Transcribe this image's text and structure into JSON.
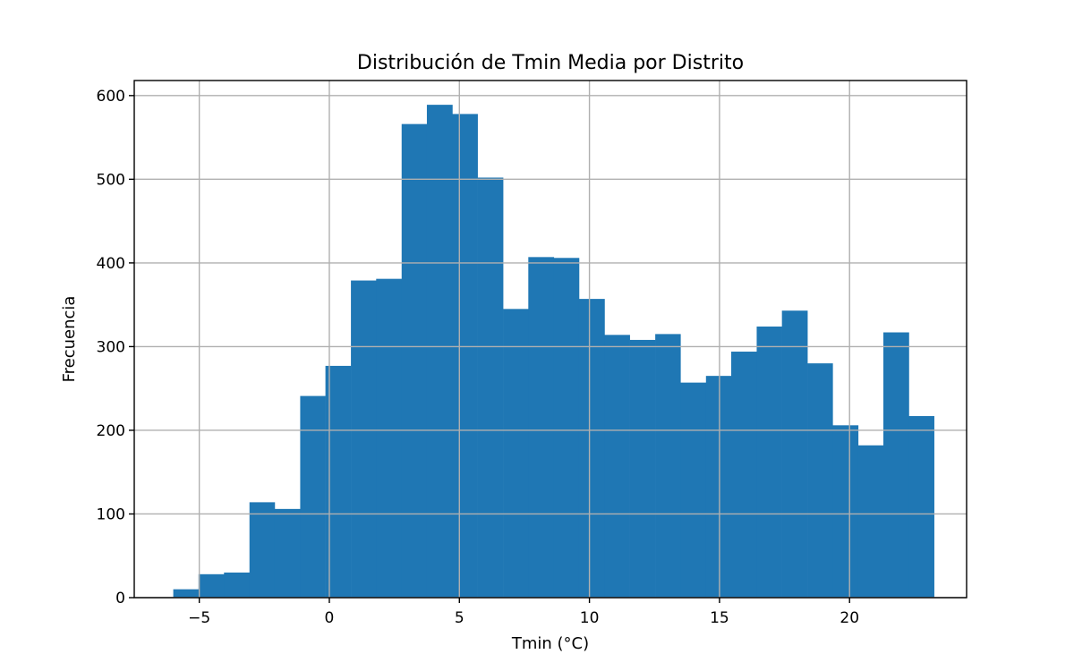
{
  "chart_data": {
    "type": "bar",
    "title": "Distribución de Tmin Media por Distrito",
    "xlabel": "Tmin (°C)",
    "ylabel": "Frecuencia",
    "xlim": [
      -7.5,
      24.5
    ],
    "ylim": [
      0,
      618
    ],
    "grid": true,
    "bar_color": "#1f77b4",
    "x_ticks": [
      -5,
      0,
      5,
      10,
      15,
      20
    ],
    "x_tick_labels": [
      "−5",
      "0",
      "5",
      "10",
      "15",
      "20"
    ],
    "y_ticks": [
      0,
      100,
      200,
      300,
      400,
      500,
      600
    ],
    "y_tick_labels": [
      "0",
      "100",
      "200",
      "300",
      "400",
      "500",
      "600"
    ],
    "bin_edges": [
      -6.0,
      -5.03,
      -4.05,
      -3.07,
      -2.1,
      -1.12,
      -0.15,
      0.83,
      1.8,
      2.78,
      3.75,
      4.73,
      5.7,
      6.68,
      7.65,
      8.63,
      9.6,
      10.58,
      11.55,
      12.53,
      13.5,
      14.48,
      15.45,
      16.43,
      17.4,
      18.38,
      19.35,
      20.33,
      21.3,
      22.28,
      23.25
    ],
    "values": [
      10,
      28,
      30,
      114,
      106,
      241,
      277,
      379,
      381,
      566,
      589,
      578,
      502,
      345,
      407,
      406,
      357,
      314,
      308,
      315,
      257,
      265,
      294,
      324,
      343,
      280,
      206,
      182,
      317,
      217
    ]
  }
}
